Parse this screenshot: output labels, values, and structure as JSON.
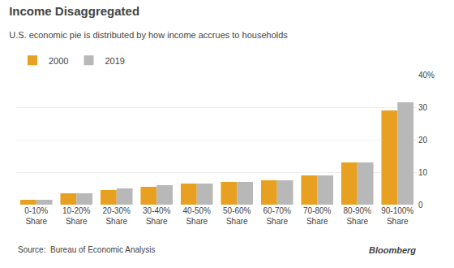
{
  "chart_data": {
    "type": "bar",
    "title": "Income Disaggregated",
    "subtitle": "U.S. economic pie is distributed by how income accrues to households",
    "annotations": [
      "Source:  Bureau of Economic Analysis",
      "Bloomberg"
    ],
    "categories": [
      "0-10%\nShare",
      "10-20%\nShare",
      "20-30%\nShare",
      "30-40%\nShare",
      "40-50%\nShare",
      "50-60%\nShare",
      "60-70%\nShare",
      "70-80%\nShare",
      "80-90%\nShare",
      "90-100%\nShare"
    ],
    "series": [
      {
        "name": "2000",
        "color": "#E8A020",
        "values": [
          1.5,
          3.5,
          4.5,
          5.5,
          6.5,
          7.0,
          7.5,
          9.0,
          13.0,
          29.0
        ]
      },
      {
        "name": "2019",
        "color": "#B8B8B8",
        "values": [
          1.5,
          3.5,
          5.0,
          6.0,
          6.5,
          7.0,
          7.5,
          9.0,
          13.0,
          31.5
        ]
      }
    ],
    "ylim": [
      0,
      40
    ],
    "yticks": [
      0,
      10,
      20,
      30,
      {
        "value": 40,
        "label": "40%"
      }
    ],
    "grid": true,
    "legend": "top left"
  }
}
